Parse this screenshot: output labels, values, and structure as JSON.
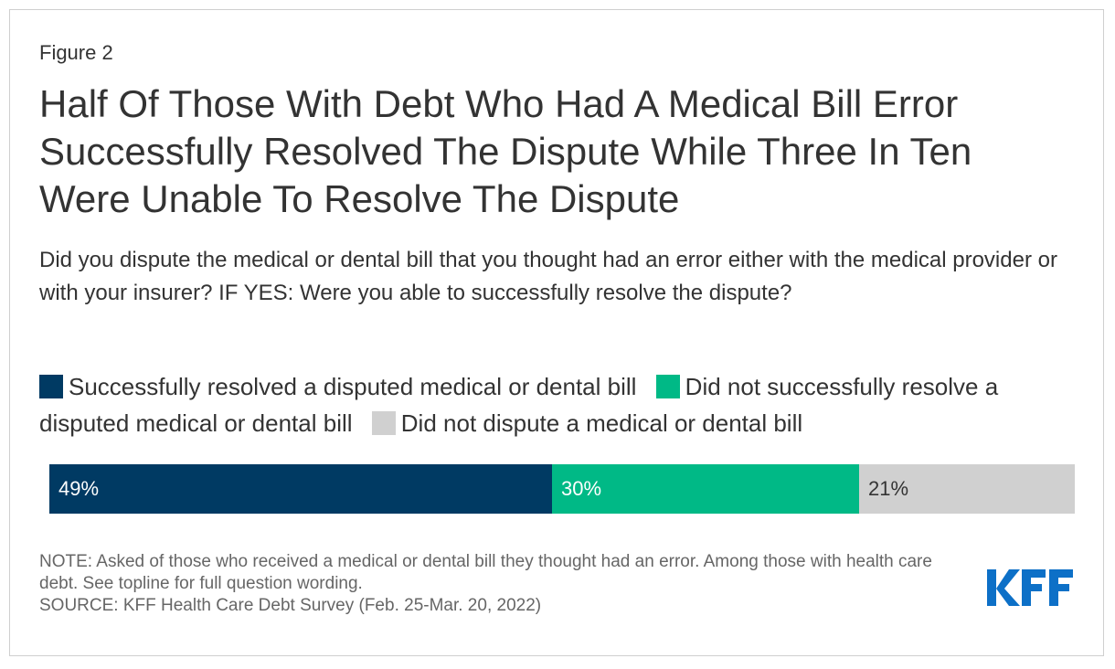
{
  "figure_label": "Figure 2",
  "colors": {
    "resolved": "#003a63",
    "not_resolved": "#00b986",
    "not_disputed": "#d0d0d0",
    "logo": "#0d70c7"
  },
  "chart_data": {
    "type": "bar",
    "orientation": "horizontal-stacked",
    "title": "Half Of Those With Debt Who Had A Medical Bill Error Successfully Resolved The Dispute While Three In Ten Were Unable To Resolve The Dispute",
    "subtitle": "Did you dispute the medical or dental bill that you thought had an error either with the medical provider or with your insurer? IF YES: Were you able to successfully resolve the dispute?",
    "legend_position": "top",
    "grid": false,
    "xlim": [
      0,
      100
    ],
    "series": [
      {
        "name": "Successfully resolved a disputed medical or dental bill",
        "values": [
          49
        ],
        "label": "49%",
        "color": "#003a63",
        "label_color": "#ffffff"
      },
      {
        "name": "Did not successfully resolve a disputed medical or dental bill",
        "values": [
          30
        ],
        "label": "30%",
        "color": "#00b986",
        "label_color": "#ffffff"
      },
      {
        "name": "Did not dispute a medical or dental bill",
        "values": [
          21
        ],
        "label": "21%",
        "color": "#d0d0d0",
        "label_color": "#333333"
      }
    ]
  },
  "note": "NOTE: Asked of those who received a medical or dental bill they thought had an error. Among those with health care debt. See topline for full question wording.",
  "source": "SOURCE: KFF Health Care Debt Survey (Feb. 25-Mar. 20, 2022)",
  "logo": {
    "text": "KFF",
    "icon": "kff-logo"
  }
}
